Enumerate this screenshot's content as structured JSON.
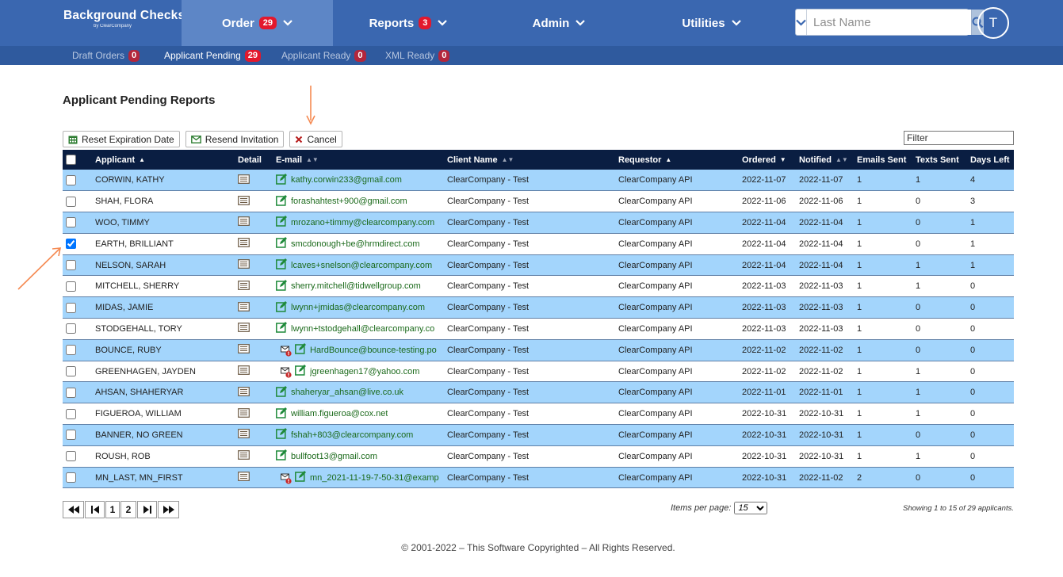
{
  "brand": {
    "title": "Background Checks",
    "subtitle": "by ClearCompany"
  },
  "nav": [
    {
      "label": "Order",
      "badge": "29",
      "active": true
    },
    {
      "label": "Reports",
      "badge": "3",
      "active": false
    },
    {
      "label": "Admin",
      "badge": "",
      "active": false
    },
    {
      "label": "Utilities",
      "badge": "",
      "active": false
    }
  ],
  "search": {
    "placeholder": "Last Name",
    "value": ""
  },
  "user": {
    "initial": "T"
  },
  "subnav": [
    {
      "label": "Draft Orders",
      "badge": "0",
      "active": false
    },
    {
      "label": "Applicant Pending",
      "badge": "29",
      "active": true
    },
    {
      "label": "Applicant Ready",
      "badge": "0",
      "active": false
    },
    {
      "label": "XML Ready",
      "badge": "0",
      "active": false
    }
  ],
  "page": {
    "title": "Applicant Pending Reports"
  },
  "toolbar": {
    "reset_label": "Reset Expiration Date",
    "resend_label": "Resend Invitation",
    "cancel_label": "Cancel",
    "filter_placeholder": "Filter"
  },
  "table": {
    "headers": {
      "applicant": "Applicant",
      "detail": "Detail",
      "email": "E-mail",
      "client": "Client Name",
      "requestor": "Requestor",
      "ordered": "Ordered",
      "notified": "Notified",
      "emails_sent": "Emails Sent",
      "texts_sent": "Texts Sent",
      "days_left": "Days Left"
    },
    "rows": [
      {
        "applicant": "CORWIN, KATHY",
        "email": "kathy.corwin233@gmail.com",
        "bounce": false,
        "client": "ClearCompany - Test",
        "requestor": "ClearCompany API",
        "ordered": "2022-11-07",
        "notified": "2022-11-07",
        "emails": "1",
        "texts": "1",
        "days": "4",
        "checked": false
      },
      {
        "applicant": "SHAH, FLORA",
        "email": "forashahtest+900@gmail.com",
        "bounce": false,
        "client": "ClearCompany - Test",
        "requestor": "ClearCompany API",
        "ordered": "2022-11-06",
        "notified": "2022-11-06",
        "emails": "1",
        "texts": "0",
        "days": "3",
        "checked": false
      },
      {
        "applicant": "WOO, TIMMY",
        "email": "mrozano+timmy@clearcompany.com",
        "bounce": false,
        "client": "ClearCompany - Test",
        "requestor": "ClearCompany API",
        "ordered": "2022-11-04",
        "notified": "2022-11-04",
        "emails": "1",
        "texts": "0",
        "days": "1",
        "checked": false
      },
      {
        "applicant": "EARTH, BRILLIANT",
        "email": "smcdonough+be@hrmdirect.com",
        "bounce": false,
        "client": "ClearCompany - Test",
        "requestor": "ClearCompany API",
        "ordered": "2022-11-04",
        "notified": "2022-11-04",
        "emails": "1",
        "texts": "0",
        "days": "1",
        "checked": true
      },
      {
        "applicant": "NELSON, SARAH",
        "email": "lcaves+snelson@clearcompany.com",
        "bounce": false,
        "client": "ClearCompany - Test",
        "requestor": "ClearCompany API",
        "ordered": "2022-11-04",
        "notified": "2022-11-04",
        "emails": "1",
        "texts": "1",
        "days": "1",
        "checked": false
      },
      {
        "applicant": "MITCHELL, SHERRY",
        "email": "sherry.mitchell@tidwellgroup.com",
        "bounce": false,
        "client": "ClearCompany - Test",
        "requestor": "ClearCompany API",
        "ordered": "2022-11-03",
        "notified": "2022-11-03",
        "emails": "1",
        "texts": "1",
        "days": "0",
        "checked": false
      },
      {
        "applicant": "MIDAS, JAMIE",
        "email": "lwynn+jmidas@clearcompany.com",
        "bounce": false,
        "client": "ClearCompany - Test",
        "requestor": "ClearCompany API",
        "ordered": "2022-11-03",
        "notified": "2022-11-03",
        "emails": "1",
        "texts": "0",
        "days": "0",
        "checked": false
      },
      {
        "applicant": "STODGEHALL, TORY",
        "email": "lwynn+tstodgehall@clearcompany.co",
        "bounce": false,
        "client": "ClearCompany - Test",
        "requestor": "ClearCompany API",
        "ordered": "2022-11-03",
        "notified": "2022-11-03",
        "emails": "1",
        "texts": "0",
        "days": "0",
        "checked": false
      },
      {
        "applicant": "BOUNCE, RUBY",
        "email": "HardBounce@bounce-testing.po",
        "bounce": true,
        "client": "ClearCompany - Test",
        "requestor": "ClearCompany API",
        "ordered": "2022-11-02",
        "notified": "2022-11-02",
        "emails": "1",
        "texts": "0",
        "days": "0",
        "checked": false
      },
      {
        "applicant": "GREENHAGEN, JAYDEN",
        "email": "jgreenhagen17@yahoo.com",
        "bounce": true,
        "client": "ClearCompany - Test",
        "requestor": "ClearCompany API",
        "ordered": "2022-11-02",
        "notified": "2022-11-02",
        "emails": "1",
        "texts": "1",
        "days": "0",
        "checked": false
      },
      {
        "applicant": "AHSAN, SHAHERYAR",
        "email": "shaheryar_ahsan@live.co.uk",
        "bounce": false,
        "client": "ClearCompany - Test",
        "requestor": "ClearCompany API",
        "ordered": "2022-11-01",
        "notified": "2022-11-01",
        "emails": "1",
        "texts": "1",
        "days": "0",
        "checked": false
      },
      {
        "applicant": "FIGUEROA, WILLIAM",
        "email": "william.figueroa@cox.net",
        "bounce": false,
        "client": "ClearCompany - Test",
        "requestor": "ClearCompany API",
        "ordered": "2022-10-31",
        "notified": "2022-10-31",
        "emails": "1",
        "texts": "1",
        "days": "0",
        "checked": false
      },
      {
        "applicant": "BANNER, NO GREEN",
        "email": "fshah+803@clearcompany.com",
        "bounce": false,
        "client": "ClearCompany - Test",
        "requestor": "ClearCompany API",
        "ordered": "2022-10-31",
        "notified": "2022-10-31",
        "emails": "1",
        "texts": "0",
        "days": "0",
        "checked": false
      },
      {
        "applicant": "ROUSH, ROB",
        "email": "bullfoot13@gmail.com",
        "bounce": false,
        "client": "ClearCompany - Test",
        "requestor": "ClearCompany API",
        "ordered": "2022-10-31",
        "notified": "2022-10-31",
        "emails": "1",
        "texts": "1",
        "days": "0",
        "checked": false
      },
      {
        "applicant": "MN_LAST, MN_FIRST",
        "email": "mn_2021-11-19-7-50-31@examp",
        "bounce": true,
        "client": "ClearCompany - Test",
        "requestor": "ClearCompany API",
        "ordered": "2022-10-31",
        "notified": "2022-11-02",
        "emails": "2",
        "texts": "0",
        "days": "0",
        "checked": false
      }
    ]
  },
  "pagination": {
    "first": "⏪",
    "prev": "⏮",
    "pages": [
      "1",
      "2"
    ],
    "next": "⏭",
    "last": "⏩",
    "items_per_page_label": "Items per page:",
    "items_per_page": "15",
    "showing": "Showing 1 to 15 of 29 applicants."
  },
  "footer": {
    "copyright": "© 2001-2022 – This Software Copyrighted – All Rights Reserved."
  },
  "colors": {
    "nav": "#3a67b0",
    "subnav": "#2f5a9e",
    "header": "#0a1e42",
    "row_alt": "#a3d5fc",
    "badge": "#e3182d",
    "arrow": "#f58a52"
  }
}
